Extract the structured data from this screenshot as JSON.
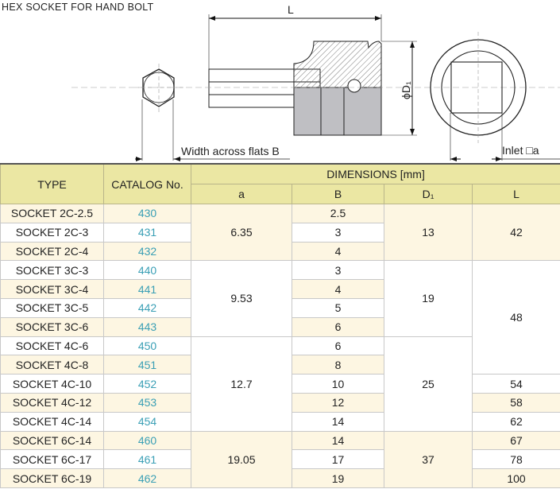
{
  "title": "HEX SOCKET FOR HAND BOLT",
  "diagram": {
    "label_L": "L",
    "label_D1": "ϕD₁",
    "label_width": "Width across flats B",
    "label_inlet": "Inlet □a"
  },
  "table": {
    "headers": {
      "type": "TYPE",
      "catalog": "CATALOG No.",
      "dimensions": "DIMENSIONS [mm]",
      "a": "a",
      "B": "B",
      "D1": "D₁",
      "L": "L"
    },
    "colors": {
      "header_bg": "#ebe7a3",
      "catalog_text": "#3a9fb5",
      "stripe": "#fdf6e2"
    },
    "rows": [
      {
        "type": "SOCKET 2C-2.5",
        "catalog": "430",
        "B": "2.5"
      },
      {
        "type": "SOCKET 2C-3",
        "catalog": "431",
        "B": "3"
      },
      {
        "type": "SOCKET 2C-4",
        "catalog": "432",
        "B": "4"
      },
      {
        "type": "SOCKET 3C-3",
        "catalog": "440",
        "B": "3"
      },
      {
        "type": "SOCKET 3C-4",
        "catalog": "441",
        "B": "4"
      },
      {
        "type": "SOCKET 3C-5",
        "catalog": "442",
        "B": "5"
      },
      {
        "type": "SOCKET 3C-6",
        "catalog": "443",
        "B": "6"
      },
      {
        "type": "SOCKET 4C-6",
        "catalog": "450",
        "B": "6"
      },
      {
        "type": "SOCKET 4C-8",
        "catalog": "451",
        "B": "8"
      },
      {
        "type": "SOCKET 4C-10",
        "catalog": "452",
        "B": "10"
      },
      {
        "type": "SOCKET 4C-12",
        "catalog": "453",
        "B": "12"
      },
      {
        "type": "SOCKET 4C-14",
        "catalog": "454",
        "B": "14"
      },
      {
        "type": "SOCKET 6C-14",
        "catalog": "460",
        "B": "14"
      },
      {
        "type": "SOCKET 6C-17",
        "catalog": "461",
        "B": "17"
      },
      {
        "type": "SOCKET 6C-19",
        "catalog": "462",
        "B": "19"
      }
    ],
    "a_groups": [
      "6.35",
      "9.53",
      "12.7",
      "19.05"
    ],
    "D1_groups": [
      "13",
      "19",
      "25",
      "37"
    ],
    "L_values": [
      "42",
      "48",
      "54",
      "58",
      "62",
      "67",
      "78",
      "100"
    ]
  }
}
